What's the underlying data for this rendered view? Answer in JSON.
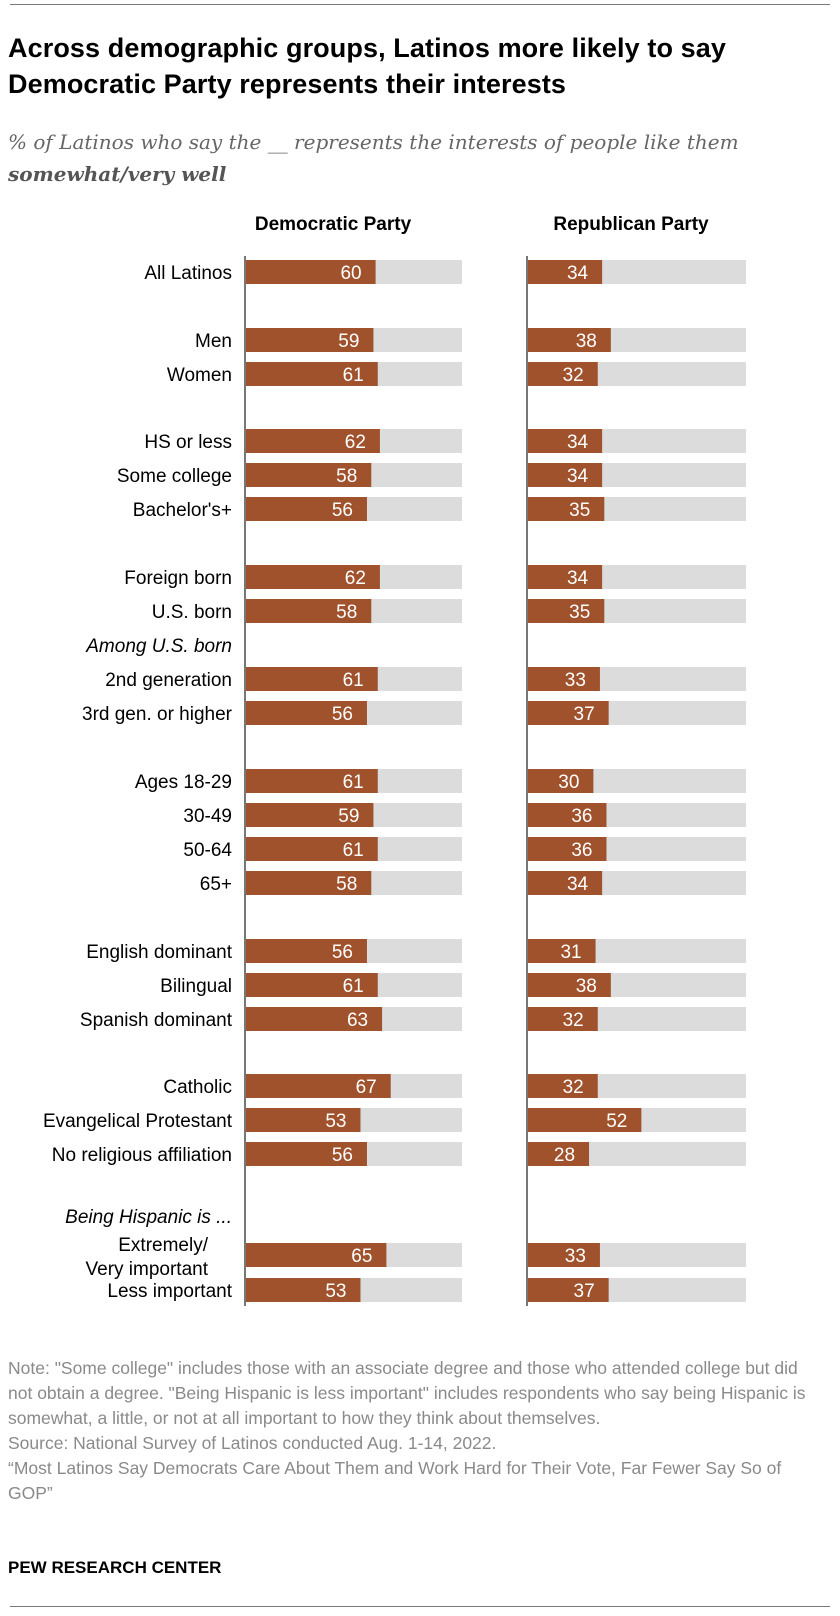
{
  "title": "Across demographic groups, Latinos more likely to say Democratic Party represents their interests",
  "subtitle_line1": "% of Latinos who say the __ represents the interests of people like them",
  "subtitle_line2": "somewhat/very well",
  "colors": {
    "bar": "#a0522d",
    "track": "#dcdcdc",
    "axis": "#777777",
    "bar_label": "#ffffff"
  },
  "chart_data": {
    "type": "bar",
    "orientation": "horizontal",
    "xlim": [
      0,
      100
    ],
    "series": [
      {
        "name": "Democratic Party",
        "values": [
          60,
          59,
          61,
          62,
          58,
          56,
          62,
          58,
          null,
          61,
          56,
          61,
          59,
          61,
          58,
          56,
          61,
          63,
          67,
          53,
          56,
          null,
          65,
          53
        ]
      },
      {
        "name": "Republican Party",
        "values": [
          34,
          38,
          32,
          34,
          34,
          35,
          34,
          35,
          null,
          33,
          37,
          30,
          36,
          36,
          34,
          31,
          38,
          32,
          32,
          52,
          28,
          null,
          33,
          37
        ]
      }
    ],
    "categories": [
      "All Latinos",
      "Men",
      "Women",
      "HS or less",
      "Some college",
      "Bachelor's+",
      "Foreign born",
      "U.S. born",
      "Among U.S. born",
      "2nd generation",
      "3rd gen. or higher",
      "Ages 18-29",
      "30-49",
      "50-64",
      "65+",
      "English dominant",
      "Bilingual",
      "Spanish dominant",
      "Catholic",
      "Evangelical Protestant",
      "No religious affiliation",
      "Being Hispanic is ...",
      "Extremely/ Very important",
      "Less important"
    ],
    "subheadings": [
      "Among U.S. born",
      "Being Hispanic is ..."
    ]
  },
  "notes": {
    "note": "Note: \"Some college\" includes those with an associate degree and those who attended college but did not obtain a degree. \"Being Hispanic is less important\" includes respondents who say being Hispanic is somewhat, a little, or not at all important to how they think about themselves.",
    "source": "Source: National Survey of Latinos conducted Aug. 1-14, 2022.",
    "report": "“Most Latinos Say Democrats Care About Them and Work Hard for Their Vote, Far Fewer Say So of GOP”"
  },
  "org": "PEW RESEARCH CENTER"
}
